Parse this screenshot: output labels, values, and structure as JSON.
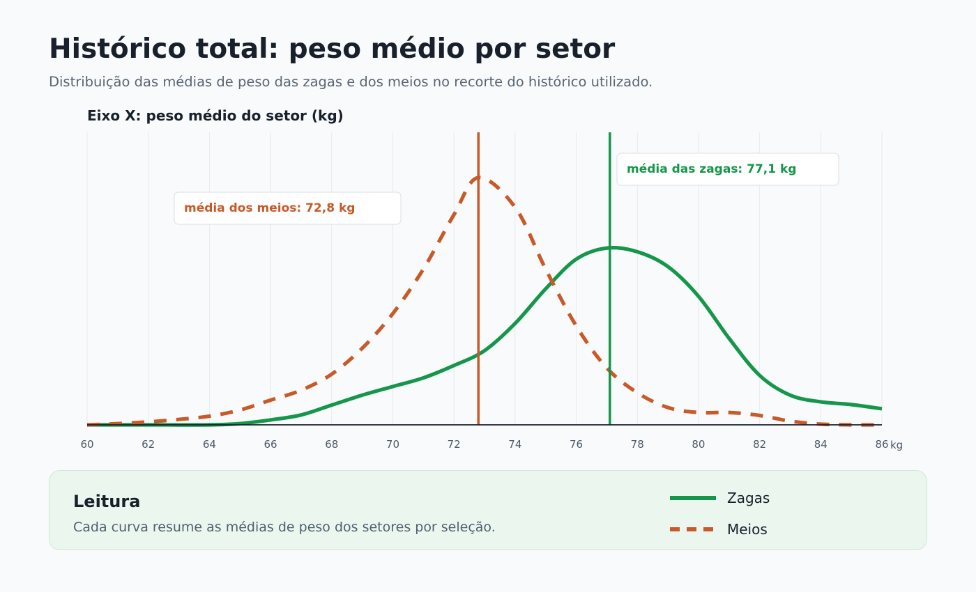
{
  "header": {
    "title": "Histórico total: peso médio por setor",
    "subtitle": "Distribuição das médias de peso das zagas e dos meios no recorte do histórico utilizado."
  },
  "chart": {
    "x_axis_title": "Eixo X: peso médio do setor (kg)",
    "unit_label": "kg"
  },
  "reading": {
    "title": "Leitura",
    "text": "Cada curva resume as médias de peso dos setores por seleção."
  },
  "legend": {
    "items": [
      {
        "label": "Zagas"
      },
      {
        "label": "Meios"
      }
    ]
  },
  "colors": {
    "zagas": "#15964a",
    "meios": "#c75a28",
    "text": "#18212b",
    "muted": "#596673"
  },
  "chart_data": {
    "type": "line",
    "title": "Histórico total: peso médio por setor",
    "subtitle": "Distribuição das médias de peso das zagas e dos meios no recorte do histórico utilizado.",
    "xlabel": "Eixo X: peso médio do setor (kg)",
    "ylabel": "",
    "xlim": [
      60,
      86
    ],
    "ylim": [
      0,
      1
    ],
    "x_ticks": [
      60,
      62,
      64,
      66,
      68,
      70,
      72,
      74,
      76,
      78,
      80,
      82,
      84,
      86
    ],
    "x_unit": "kg",
    "grid": true,
    "legend_position": "bottom-right",
    "series": [
      {
        "name": "Zagas",
        "line_style": "solid",
        "points": [
          [
            60,
            0.0
          ],
          [
            62,
            0.0
          ],
          [
            64,
            0.0
          ],
          [
            65,
            0.005
          ],
          [
            66,
            0.02
          ],
          [
            67,
            0.04
          ],
          [
            68,
            0.08
          ],
          [
            69,
            0.12
          ],
          [
            70,
            0.155
          ],
          [
            71,
            0.19
          ],
          [
            72,
            0.24
          ],
          [
            73,
            0.3
          ],
          [
            74,
            0.41
          ],
          [
            75,
            0.55
          ],
          [
            76,
            0.67
          ],
          [
            77,
            0.715
          ],
          [
            78,
            0.7
          ],
          [
            79,
            0.64
          ],
          [
            80,
            0.52
          ],
          [
            81,
            0.35
          ],
          [
            82,
            0.2
          ],
          [
            83,
            0.12
          ],
          [
            84,
            0.093
          ],
          [
            85,
            0.082
          ],
          [
            86,
            0.065
          ]
        ]
      },
      {
        "name": "Meios",
        "line_style": "dashed",
        "points": [
          [
            60,
            0.0
          ],
          [
            61,
            0.005
          ],
          [
            62,
            0.012
          ],
          [
            63,
            0.022
          ],
          [
            64,
            0.035
          ],
          [
            65,
            0.06
          ],
          [
            66,
            0.1
          ],
          [
            67,
            0.14
          ],
          [
            68,
            0.205
          ],
          [
            69,
            0.31
          ],
          [
            70,
            0.45
          ],
          [
            71,
            0.63
          ],
          [
            72,
            0.85
          ],
          [
            72.8,
            1.0
          ],
          [
            74,
            0.88
          ],
          [
            75,
            0.63
          ],
          [
            76,
            0.4
          ],
          [
            77,
            0.23
          ],
          [
            78,
            0.13
          ],
          [
            79,
            0.07
          ],
          [
            80,
            0.05
          ],
          [
            81,
            0.05
          ],
          [
            82,
            0.038
          ],
          [
            83,
            0.015
          ],
          [
            84,
            0.003
          ],
          [
            85,
            0.0
          ],
          [
            86,
            0.0
          ]
        ]
      }
    ],
    "reference_lines": [
      {
        "series": "Meios",
        "x": 72.8,
        "label": "média dos meios: 72,8 kg"
      },
      {
        "series": "Zagas",
        "x": 77.1,
        "label": "média das zagas: 77,1 kg"
      }
    ]
  }
}
